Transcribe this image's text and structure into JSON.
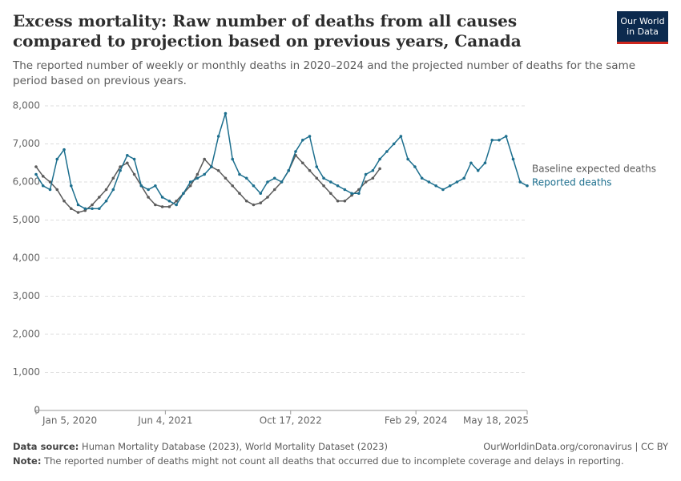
{
  "chart_data": {
    "type": "line",
    "title": "Excess mortality: Raw number of deaths from all causes compared to projection based on previous years, Canada",
    "subtitle": "The reported number of weekly or monthly deaths in 2020–2024 and the projected number of deaths for the same period based on previous years.",
    "logo": [
      "Our World",
      "in Data"
    ],
    "source": {
      "label": "Data source:",
      "text": "Human Mortality Database (2023), World Mortality Dataset (2023)"
    },
    "url": "OurWorldinData.org/coronavirus | CC BY",
    "note": {
      "label": "Note:",
      "text": "The reported number of deaths might not count all deaths that occurred due to incomplete coverage and delays in reporting."
    },
    "x": [
      "2020-01-05",
      "2020-02-02",
      "2020-03-01",
      "2020-03-29",
      "2020-04-26",
      "2020-05-24",
      "2020-06-21",
      "2020-07-19",
      "2020-08-16",
      "2020-09-13",
      "2020-10-11",
      "2020-11-08",
      "2020-12-06",
      "2021-01-03",
      "2021-01-31",
      "2021-02-28",
      "2021-03-28",
      "2021-04-25",
      "2021-05-23",
      "2021-06-20",
      "2021-07-18",
      "2021-08-15",
      "2021-09-12",
      "2021-10-10",
      "2021-11-07",
      "2021-12-05",
      "2022-01-02",
      "2022-01-30",
      "2022-02-27",
      "2022-03-27",
      "2022-04-24",
      "2022-05-22",
      "2022-06-19",
      "2022-07-17",
      "2022-08-14",
      "2022-09-11",
      "2022-10-09",
      "2022-11-06",
      "2022-12-04",
      "2023-01-01",
      "2023-01-29",
      "2023-02-26",
      "2023-03-26",
      "2023-04-23",
      "2023-05-21",
      "2023-06-18",
      "2023-07-16",
      "2023-08-13",
      "2023-09-10",
      "2023-10-08",
      "2023-11-05",
      "2023-12-03",
      "2023-12-31",
      "2024-01-28",
      "2024-02-25",
      "2024-03-24",
      "2024-04-21",
      "2024-05-19",
      "2024-06-16",
      "2024-07-14",
      "2024-08-11",
      "2024-09-08",
      "2024-10-06",
      "2024-11-03",
      "2024-12-01",
      "2024-12-29",
      "2025-01-26",
      "2025-02-23",
      "2025-03-23",
      "2025-04-20",
      "2025-05-18"
    ],
    "series": [
      {
        "name": "Baseline expected deaths",
        "color": "#5b5b5b",
        "values": [
          6400,
          6150,
          6000,
          5800,
          5500,
          5300,
          5200,
          5250,
          5400,
          5600,
          5800,
          6100,
          6400,
          6500,
          6200,
          5900,
          5600,
          5400,
          5350,
          5350,
          5500,
          5700,
          5900,
          6200,
          6600,
          6400,
          6300,
          6100,
          5900,
          5700,
          5500,
          5400,
          5450,
          5600,
          5800,
          6000,
          6300,
          6700,
          6500,
          6300,
          6100,
          5900,
          5700,
          5500,
          5500,
          5650,
          5800,
          6000,
          6100,
          6350,
          null,
          null,
          null,
          null,
          null,
          null,
          null,
          null,
          null,
          null,
          null,
          null,
          null,
          null,
          null,
          null,
          null,
          null,
          null,
          null,
          null
        ]
      },
      {
        "name": "Reported deaths",
        "color": "#1d6f8e",
        "values": [
          6200,
          5900,
          5800,
          6600,
          6850,
          5900,
          5400,
          5300,
          5300,
          5300,
          5500,
          5800,
          6300,
          6700,
          6600,
          5900,
          5800,
          5900,
          5600,
          5500,
          5400,
          5700,
          6000,
          6100,
          6200,
          6400,
          7200,
          7800,
          6600,
          6200,
          6100,
          5900,
          5700,
          6000,
          6100,
          6000,
          6300,
          6800,
          7100,
          7200,
          6400,
          6100,
          6000,
          5900,
          5800,
          5700,
          5700,
          6200,
          6300,
          6600,
          6800,
          7000,
          7200,
          6600,
          6400,
          6100,
          6000,
          5900,
          5800,
          5900,
          6000,
          6100,
          6500,
          6300,
          6500,
          7100,
          7100,
          7200,
          6600,
          6000,
          5900
        ]
      }
    ],
    "xlim": [
      "2020-01-05",
      "2025-05-18"
    ],
    "xticks": [
      {
        "value": "2020-01-05",
        "label": "Jan 5, 2020"
      },
      {
        "value": "2021-06-04",
        "label": "Jun 4, 2021"
      },
      {
        "value": "2022-10-17",
        "label": "Oct 17, 2022"
      },
      {
        "value": "2024-02-29",
        "label": "Feb 29, 2024"
      },
      {
        "value": "2025-05-18",
        "label": "May 18, 2025"
      }
    ],
    "ylim": [
      0,
      8000
    ],
    "yticks": [
      0,
      {
        "value": 1000,
        "label": "1,000"
      },
      {
        "value": 2000,
        "label": "2,000"
      },
      {
        "value": 3000,
        "label": "3,000"
      },
      {
        "value": 4000,
        "label": "4,000"
      },
      {
        "value": 5000,
        "label": "5,000"
      },
      {
        "value": 6000,
        "label": "6,000"
      },
      {
        "value": 7000,
        "label": "7,000"
      },
      {
        "value": 8000,
        "label": "8,000"
      }
    ],
    "grid": true
  }
}
